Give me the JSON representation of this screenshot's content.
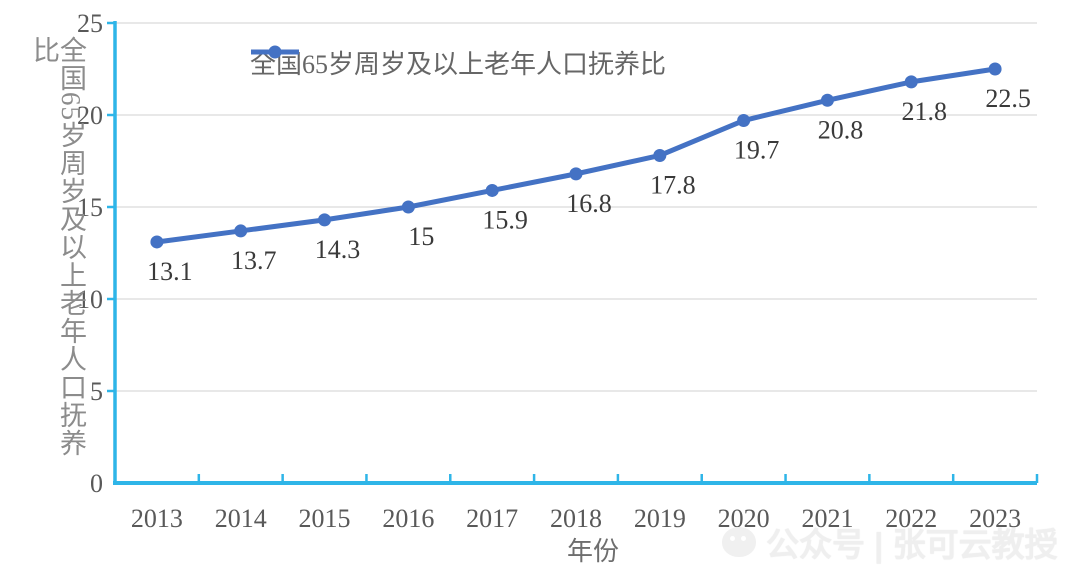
{
  "chart_data": {
    "type": "line",
    "title": "",
    "categories": [
      "2013",
      "2014",
      "2015",
      "2016",
      "2017",
      "2018",
      "2019",
      "2020",
      "2021",
      "2022",
      "2023"
    ],
    "series": [
      {
        "name": "全国65岁周岁及以上老年人口抚养比",
        "values": [
          13.1,
          13.7,
          14.3,
          15,
          15.9,
          16.8,
          17.8,
          19.7,
          20.8,
          21.8,
          22.5
        ]
      }
    ],
    "data_labels": [
      "13.1",
      "13.7",
      "14.3",
      "15",
      "15.9",
      "16.8",
      "17.8",
      "19.7",
      "20.8",
      "21.8",
      "22.5"
    ],
    "xlabel": "年份",
    "ylabel": "全国65岁周岁及以上老年人口抚养比",
    "ylim": [
      0,
      25
    ],
    "yticks": [
      0,
      5,
      10,
      15,
      20,
      25
    ],
    "grid": true,
    "legend_position": "top-center",
    "colors": {
      "series": "#4472c4",
      "axis": "#2eb5e8",
      "gridline": "#d9d9d9",
      "tick_label": "#595959",
      "data_label": "#3a3a3a",
      "legend_text": "#666666",
      "axis_title": "#8c8c8c"
    }
  },
  "watermark": {
    "icon": "wechat-icon",
    "text": "公众号 | 张可云教授"
  }
}
